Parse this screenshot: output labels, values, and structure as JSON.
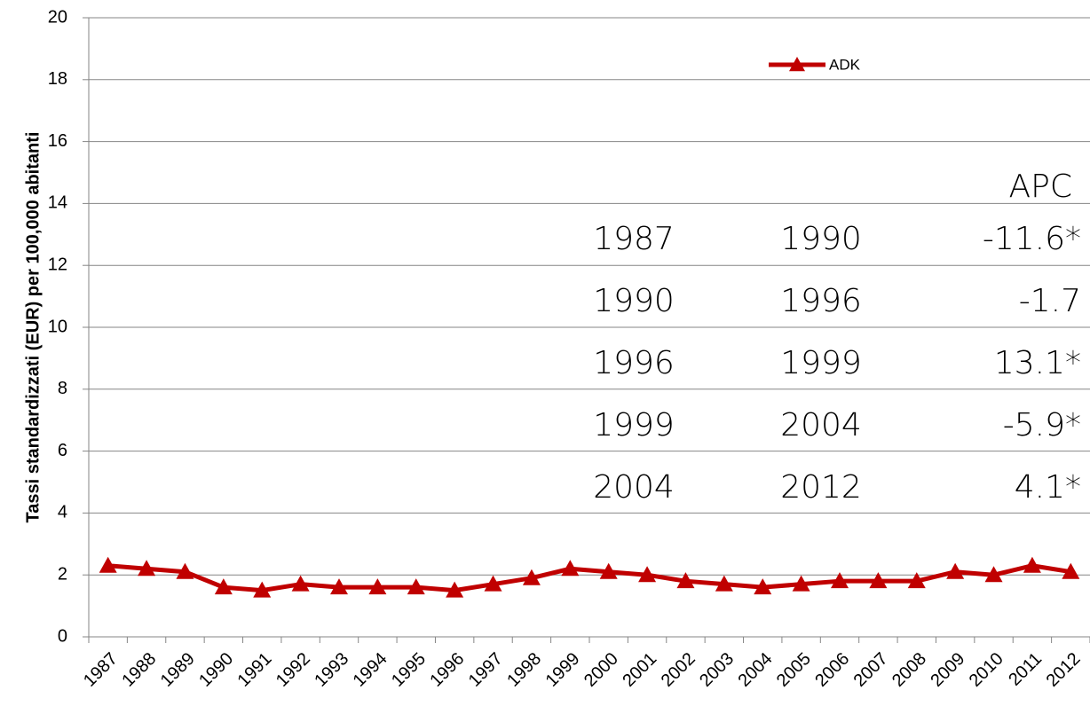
{
  "chart_data": {
    "type": "line",
    "y_label": "Tassi standardizzati  (EUR) per 100,000 abitanti",
    "categories": [
      "1987",
      "1988",
      "1989",
      "1990",
      "1991",
      "1992",
      "1993",
      "1994",
      "1995",
      "1996",
      "1997",
      "1998",
      "1999",
      "2000",
      "2001",
      "2002",
      "2003",
      "2004",
      "2005",
      "2006",
      "2007",
      "2008",
      "2009",
      "2010",
      "2011",
      "2012"
    ],
    "series": [
      {
        "name": "ADK",
        "color": "#c00000",
        "values": [
          2.3,
          2.2,
          2.1,
          1.6,
          1.5,
          1.7,
          1.6,
          1.6,
          1.6,
          1.5,
          1.7,
          1.9,
          2.2,
          2.1,
          2.0,
          1.8,
          1.7,
          1.6,
          1.7,
          1.8,
          1.8,
          1.8,
          2.1,
          2.0,
          2.3,
          2.1
        ]
      }
    ],
    "ylim": [
      0,
      20
    ],
    "yticks": [
      0,
      2,
      4,
      6,
      8,
      10,
      12,
      14,
      16,
      18,
      20
    ],
    "grid": true,
    "annotation": {
      "header": "APC",
      "rows": [
        [
          "1987",
          "1990",
          "-11.6*"
        ],
        [
          "1990",
          "1996",
          "-1.7"
        ],
        [
          "1996",
          "1999",
          "13.1*"
        ],
        [
          "1999",
          "2004",
          "-5.9*"
        ],
        [
          "2004",
          "2012",
          "4.1*"
        ]
      ]
    }
  }
}
